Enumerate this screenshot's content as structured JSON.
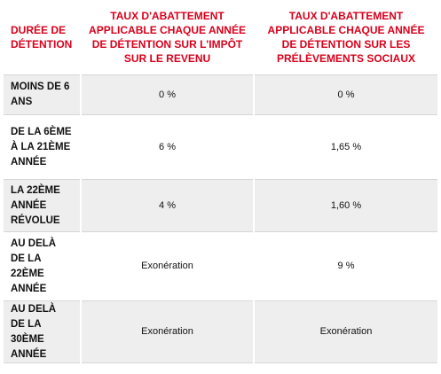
{
  "table": {
    "header": [
      "DURÉE DE DÉTENTION",
      "TAUX D'ABATTEMENT APPLICABLE CHAQUE ANNÉE DE DÉTENTION SUR L'IMPÔT SUR LE REVENU",
      "TAUX D'ABATTEMENT APPLICABLE CHAQUE ANNÉE DE DÉTENTION SUR LES PRÉLÈVEMENTS SOCIAUX"
    ],
    "rows": [
      [
        "MOINS DE 6 ANS",
        "0 %",
        "0 %"
      ],
      [
        "DE LA 6ÈME À LA 21ÈME ANNÉE",
        "6 %",
        "1,65 %"
      ],
      [
        "LA 22ÈME ANNÉE RÉVOLUE",
        "4 %",
        "1,60 %"
      ],
      [
        "AU DELÀ DE LA 22ÈME ANNÉE",
        "Exonération",
        "9 %"
      ],
      [
        "AU DELÀ DE LA 30ÈME ANNÉE",
        "Exonération",
        "Exonération"
      ]
    ]
  }
}
